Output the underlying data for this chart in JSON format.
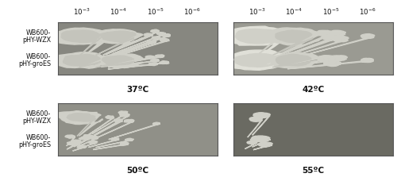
{
  "figure_width": 5.0,
  "figure_height": 2.33,
  "dpi": 100,
  "background_color": "#ffffff",
  "panel_bg": {
    "00": "#878780",
    "01": "#9a9a92",
    "10": "#909088",
    "11": "#6a6a62"
  },
  "temp_labels": {
    "00": "37ºC",
    "01": "42ºC",
    "10": "50ºC",
    "11": "55ºC"
  },
  "dilution_labels": [
    "$10^{-3}$",
    "$10^{-4}$",
    "$10^{-5}$",
    "$10^{-6}$"
  ],
  "row_label_wzx": [
    "WB600-",
    "pHY-WZX"
  ],
  "row_label_groes": [
    "WB600-",
    "pHY-groES"
  ],
  "text_color": "#111111",
  "colony_color_light": "#dedede",
  "colony_color_mid": "#d0d0c8",
  "colony_color_dark": "#c4c4bc"
}
